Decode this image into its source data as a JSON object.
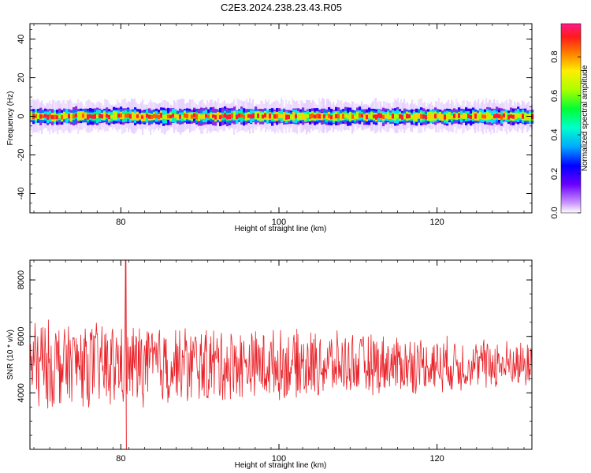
{
  "title": "C2E3.2024.238.23.43.R05",
  "chart_data": [
    {
      "type": "heatmap",
      "xlabel": "Height of straight line (km)",
      "ylabel": "Frequency (Hz)",
      "xlim": [
        68.5,
        132
      ],
      "ylim": [
        -50,
        48
      ],
      "xticks": [
        80,
        100,
        120
      ],
      "yticks": [
        -40,
        -20,
        0,
        20,
        40
      ],
      "band_center_hz": 0,
      "band_halfwidth_hz": 4,
      "colorbar": {
        "label": "Normalized spectral amplitude",
        "range": [
          0,
          0.97
        ],
        "ticks": [
          0.0,
          0.2,
          0.4,
          0.6,
          0.8
        ]
      },
      "grid": false
    },
    {
      "type": "line",
      "xlabel": "Height of straight line (km)",
      "ylabel": "SNR (10 * v/v)",
      "xlim": [
        68.5,
        132
      ],
      "ylim": [
        2000,
        8700
      ],
      "xticks": [
        80,
        100,
        120
      ],
      "yticks": [
        4000,
        6000,
        8000
      ],
      "series_color": "#e8232a",
      "mean_snr": 5000,
      "peak": {
        "x": 80.6,
        "y": 8700
      },
      "grid": false
    }
  ]
}
